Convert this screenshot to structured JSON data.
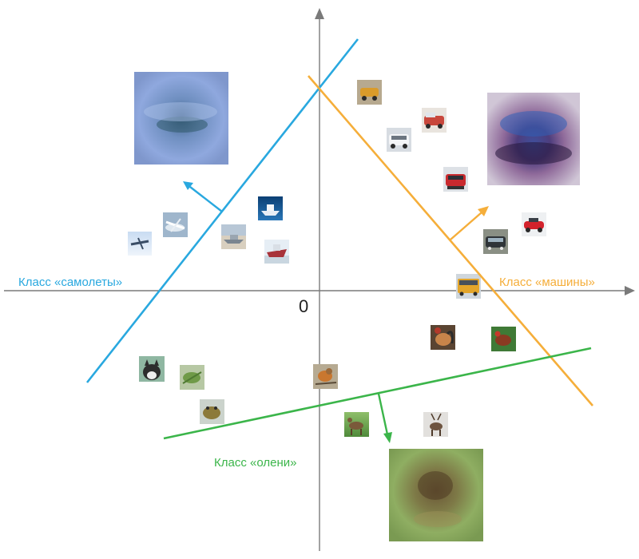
{
  "origin_label": "0",
  "classes": {
    "airplanes": {
      "label": "Класс «самолеты»",
      "color": "#29a8df"
    },
    "cars": {
      "label": "Класс «машины»",
      "color": "#f5ae3a"
    },
    "deer": {
      "label": "Класс «олени»",
      "color": "#3bb54a"
    }
  },
  "axis_color": "#7a7a7a",
  "thumbnails": [
    {
      "name": "airplane-thumbnail-1",
      "subject": "airplane"
    },
    {
      "name": "airplane-thumbnail-2",
      "subject": "airplane"
    },
    {
      "name": "ship-thumbnail-1",
      "subject": "ship"
    },
    {
      "name": "ship-thumbnail-2",
      "subject": "ship"
    },
    {
      "name": "ship-thumbnail-3",
      "subject": "ship"
    },
    {
      "name": "car-thumbnail-1",
      "subject": "car"
    },
    {
      "name": "car-thumbnail-2",
      "subject": "car"
    },
    {
      "name": "car-thumbnail-3",
      "subject": "car"
    },
    {
      "name": "car-thumbnail-4",
      "subject": "car"
    },
    {
      "name": "car-thumbnail-5",
      "subject": "car"
    },
    {
      "name": "car-thumbnail-6",
      "subject": "car"
    },
    {
      "name": "bus-thumbnail",
      "subject": "bus"
    },
    {
      "name": "rooster-thumbnail-1",
      "subject": "rooster"
    },
    {
      "name": "rooster-thumbnail-2",
      "subject": "rooster"
    },
    {
      "name": "cat-thumbnail",
      "subject": "cat"
    },
    {
      "name": "frog-thumbnail-1",
      "subject": "frog"
    },
    {
      "name": "frog-thumbnail-2",
      "subject": "frog"
    },
    {
      "name": "bird-thumbnail",
      "subject": "bird"
    },
    {
      "name": "deer-thumbnail-1",
      "subject": "deer"
    },
    {
      "name": "deer-thumbnail-2",
      "subject": "deer"
    }
  ],
  "prototypes": [
    {
      "name": "airplane-class-prototype",
      "subject": "airplane"
    },
    {
      "name": "car-class-prototype",
      "subject": "car"
    },
    {
      "name": "deer-class-prototype",
      "subject": "deer"
    }
  ]
}
